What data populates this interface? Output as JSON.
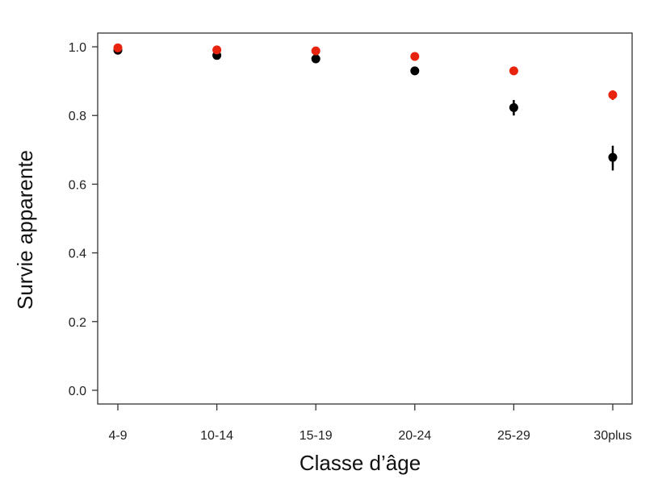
{
  "chart_data": {
    "type": "scatter",
    "title": "",
    "xlabel": "Classe d’âge",
    "ylabel": "Survie apparente",
    "categories": [
      "4-9",
      "10-14",
      "15-19",
      "20-24",
      "25-29",
      "30plus"
    ],
    "y_ticks": [
      "0.0",
      "0.2",
      "0.4",
      "0.6",
      "0.8",
      "1.0"
    ],
    "ylim": [
      -0.04,
      1.04
    ],
    "grid": false,
    "legend": "none",
    "series": [
      {
        "color": "#000000",
        "values": [
          0.99,
          0.975,
          0.965,
          0.93,
          0.823,
          0.678
        ],
        "error_low": [
          0.984,
          0.968,
          0.957,
          0.923,
          0.8,
          0.64
        ],
        "error_high": [
          0.996,
          0.982,
          0.973,
          0.937,
          0.845,
          0.712
        ]
      },
      {
        "color": "#e8230e",
        "values": [
          0.997,
          0.991,
          0.988,
          0.972,
          0.93,
          0.86
        ],
        "error_low": [
          0.994,
          0.987,
          0.984,
          0.968,
          0.925,
          0.845
        ],
        "error_high": [
          1.0,
          0.995,
          0.992,
          0.976,
          0.935,
          0.873
        ]
      }
    ]
  }
}
